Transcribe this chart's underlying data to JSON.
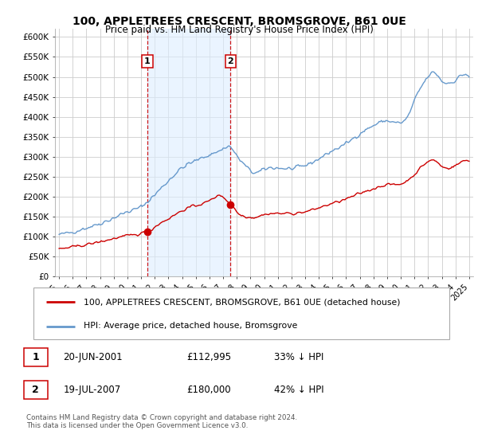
{
  "title": "100, APPLETREES CRESCENT, BROMSGROVE, B61 0UE",
  "subtitle": "Price paid vs. HM Land Registry's House Price Index (HPI)",
  "red_label": "100, APPLETREES CRESCENT, BROMSGROVE, B61 0UE (detached house)",
  "blue_label": "HPI: Average price, detached house, Bromsgrove",
  "transaction1_date": "20-JUN-2001",
  "transaction1_price": "£112,995",
  "transaction1_hpi": "33% ↓ HPI",
  "transaction2_date": "19-JUL-2007",
  "transaction2_price": "£180,000",
  "transaction2_hpi": "42% ↓ HPI",
  "footer": "Contains HM Land Registry data © Crown copyright and database right 2024.\nThis data is licensed under the Open Government Licence v3.0.",
  "red_color": "#cc0000",
  "blue_color": "#6699cc",
  "blue_fill": "#ddeeff",
  "vline_color": "#cc0000",
  "plot_bg": "#ffffff",
  "grid_color": "#cccccc",
  "ylim": [
    0,
    620000
  ],
  "xlim_start": 1994.7,
  "xlim_end": 2025.3,
  "t1_x": 2001.46,
  "t2_x": 2007.54,
  "t1_y": 112995,
  "t2_y": 180000
}
